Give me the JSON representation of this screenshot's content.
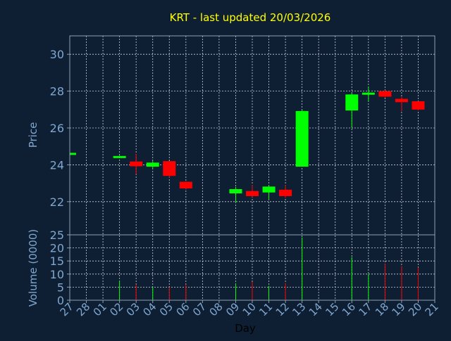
{
  "chart_data": {
    "type": "candlestick",
    "title": "KRT - last updated 20/03/2026",
    "xlabel": "Day",
    "colors": {
      "background": "#0f1f33",
      "axes": "#8f9fb0",
      "title": "#ffff00",
      "label": "#7fa7d0",
      "up": "#00ff00",
      "down": "#ff0000"
    },
    "x_ticks": [
      "27",
      "28",
      "01",
      "02",
      "03",
      "04",
      "05",
      "06",
      "07",
      "08",
      "09",
      "10",
      "11",
      "12",
      "13",
      "14",
      "15",
      "16",
      "17",
      "18",
      "19",
      "20",
      "21"
    ],
    "price_panel": {
      "ylabel": "Price",
      "ylim": [
        20.2,
        31.0
      ],
      "y_ticks": [
        22,
        24,
        26,
        28,
        30
      ],
      "grid": true
    },
    "volume_panel": {
      "ylabel": "Volume (0000)",
      "ylim": [
        0,
        25
      ],
      "y_ticks": [
        0,
        5,
        10,
        15,
        20,
        25
      ],
      "grid": true
    },
    "candles": [
      {
        "day": "27",
        "open": 24.62,
        "high": 24.65,
        "low": 24.58,
        "close": 24.65,
        "volume": 0
      },
      {
        "day": "02",
        "open": 24.42,
        "high": 24.5,
        "low": 24.38,
        "close": 24.48,
        "volume": 7.5
      },
      {
        "day": "03",
        "open": 24.18,
        "high": 24.6,
        "low": 23.5,
        "close": 23.92,
        "volume": 6
      },
      {
        "day": "04",
        "open": 23.9,
        "high": 24.2,
        "low": 23.8,
        "close": 24.12,
        "volume": 5
      },
      {
        "day": "05",
        "open": 24.2,
        "high": 24.2,
        "low": 23.3,
        "close": 23.4,
        "volume": 5
      },
      {
        "day": "06",
        "open": 23.08,
        "high": 23.1,
        "low": 22.65,
        "close": 22.72,
        "volume": 6
      },
      {
        "day": "09",
        "open": 22.45,
        "high": 22.8,
        "low": 21.95,
        "close": 22.68,
        "volume": 6.5
      },
      {
        "day": "10",
        "open": 22.58,
        "high": 22.9,
        "low": 22.25,
        "close": 22.3,
        "volume": 7
      },
      {
        "day": "11",
        "open": 22.5,
        "high": 22.88,
        "low": 22.1,
        "close": 22.82,
        "volume": 5.5
      },
      {
        "day": "12",
        "open": 22.65,
        "high": 22.9,
        "low": 22.2,
        "close": 22.3,
        "volume": 6.5
      },
      {
        "day": "13",
        "open": 23.9,
        "high": 27.0,
        "low": 23.9,
        "close": 26.92,
        "volume": 24
      },
      {
        "day": "16",
        "open": 26.95,
        "high": 27.9,
        "low": 26.0,
        "close": 27.82,
        "volume": 16.5
      },
      {
        "day": "17",
        "open": 27.82,
        "high": 28.25,
        "low": 27.45,
        "close": 27.92,
        "volume": 10
      },
      {
        "day": "18",
        "open": 28.0,
        "high": 28.05,
        "low": 27.65,
        "close": 27.7,
        "volume": 14
      },
      {
        "day": "19",
        "open": 27.58,
        "high": 27.7,
        "low": 26.9,
        "close": 27.4,
        "volume": 13
      },
      {
        "day": "20",
        "open": 27.45,
        "high": 27.45,
        "low": 26.95,
        "close": 27.0,
        "volume": 12.5
      }
    ]
  }
}
